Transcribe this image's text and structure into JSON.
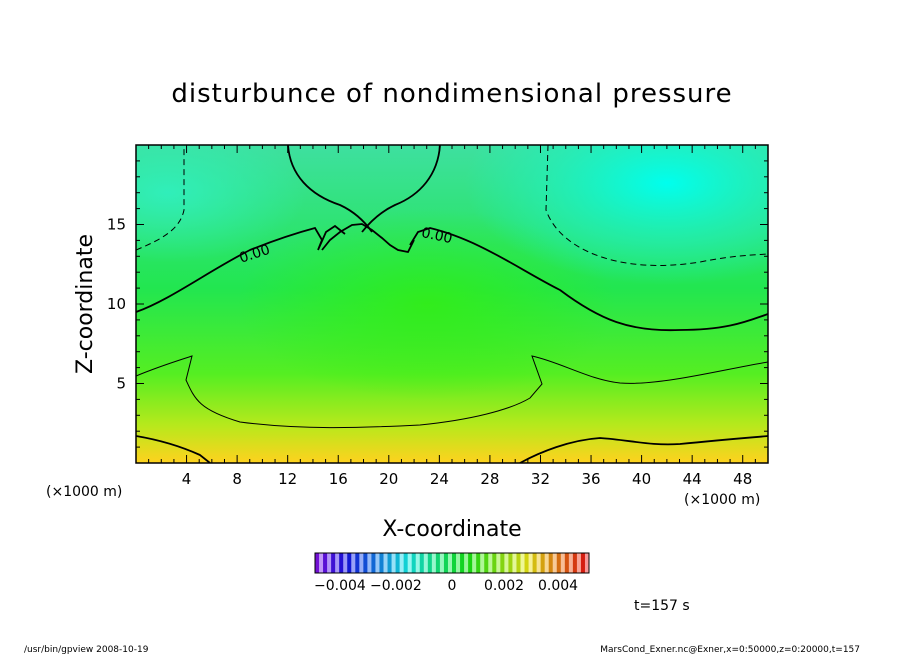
{
  "chart_data": {
    "type": "heatmap",
    "title": "disturbunce of nondimensional pressure",
    "xlabel": "X-coordinate",
    "ylabel": "Z-coordinate",
    "x_unit": "(×1000 m)",
    "x_unit_left": "(×1000 m)",
    "xlim": [
      0,
      50
    ],
    "ylim": [
      0,
      20
    ],
    "x_ticks": [
      "4",
      "8",
      "12",
      "16",
      "20",
      "24",
      "28",
      "32",
      "36",
      "40",
      "44",
      "48"
    ],
    "y_ticks": [
      "5",
      "10",
      "15"
    ],
    "contour_labels": [
      "0.00",
      "0.00"
    ],
    "colorbar": {
      "range": [
        -0.005,
        0.005
      ],
      "tick_labels": [
        "−0.004",
        "−0.002",
        "0",
        "0.002",
        "0.004"
      ]
    },
    "time_label": "t=157 s",
    "grid": false
  },
  "footer": {
    "left": "/usr/bin/gpview   2008-10-19",
    "right": "MarsCond_Exner.nc@Exner,x=0:50000,z=0:20000,t=157"
  }
}
